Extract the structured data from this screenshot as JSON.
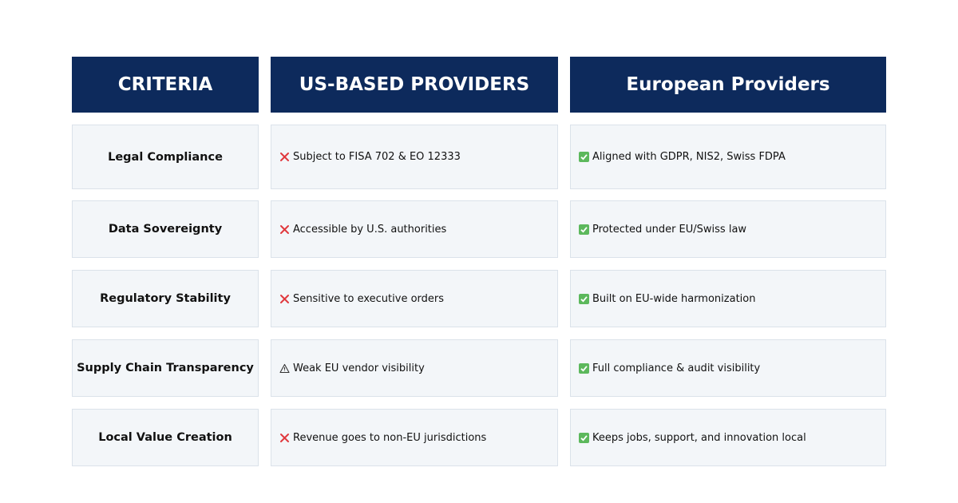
{
  "table": {
    "headers": [
      "CRITERIA",
      "US-BASED PROVIDERS",
      "European Providers"
    ],
    "rows": [
      [
        "Legal Compliance",
        "Subject to FISA 702 & EO 12333",
        "Aligned with GDPR, NIS2, Swiss FDPA"
      ],
      [
        "Data Sovereignty",
        "Accessible by U.S. authorities",
        "Protected under EU/Swiss law"
      ],
      [
        "Regulatory Stability",
        "Sensitive to executive orders",
        "Built on EU-wide harmonization"
      ],
      [
        "Supply Chain Transparency",
        "Weak EU vendor visibility",
        "Full compliance & audit visibility"
      ],
      [
        "Local Value Creation",
        "Revenue goes to non-EU jurisdictions",
        "Keeps jobs, support, and innovation local"
      ]
    ]
  }
}
